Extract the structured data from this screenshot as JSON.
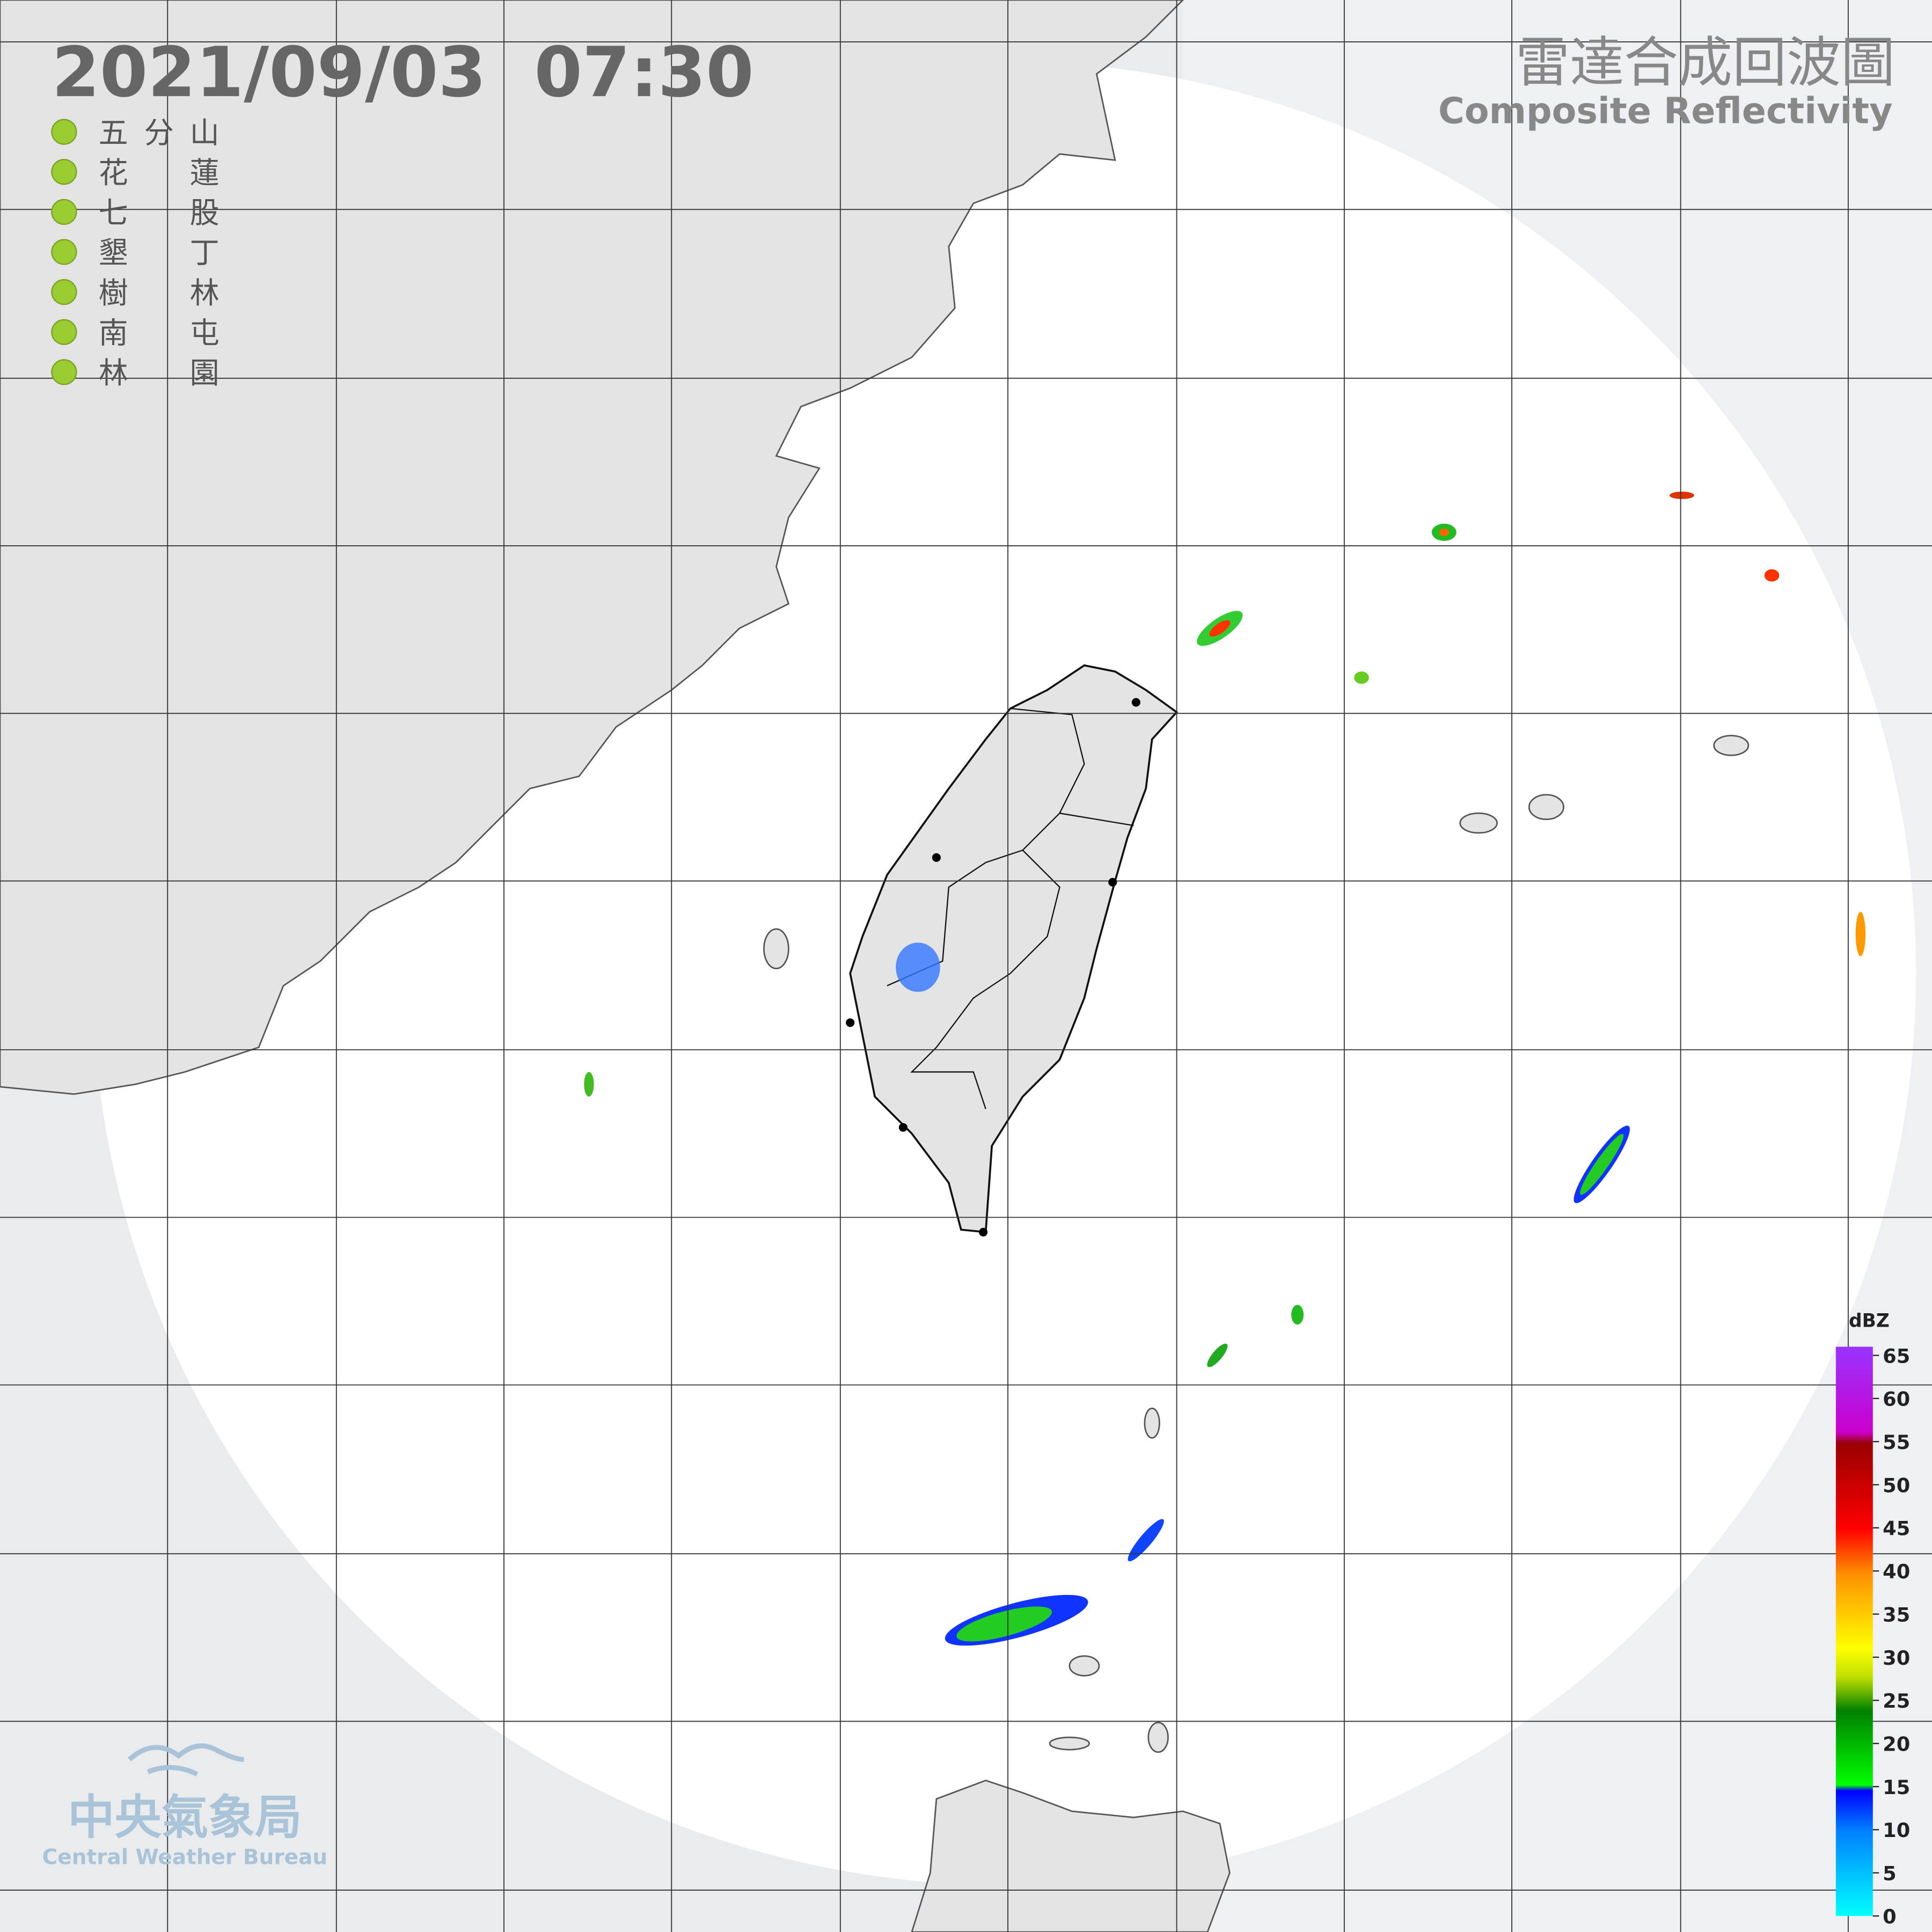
{
  "timestamp": "2021/09/03  07:30",
  "title": "雷達合成回波圖",
  "subtitle": "Composite Reflectivity",
  "stations": [
    "五分山",
    "花蓮",
    "七股",
    "墾丁",
    "樹林",
    "南屯",
    "林園"
  ],
  "legend": {
    "unit": "dBZ",
    "range": [
      0,
      66
    ],
    "ticks": [
      0,
      5,
      10,
      15,
      20,
      25,
      30,
      35,
      40,
      45,
      50,
      55,
      60,
      65
    ]
  },
  "logo": {
    "name": "中央氣象局",
    "english": "Central Weather Bureau"
  }
}
